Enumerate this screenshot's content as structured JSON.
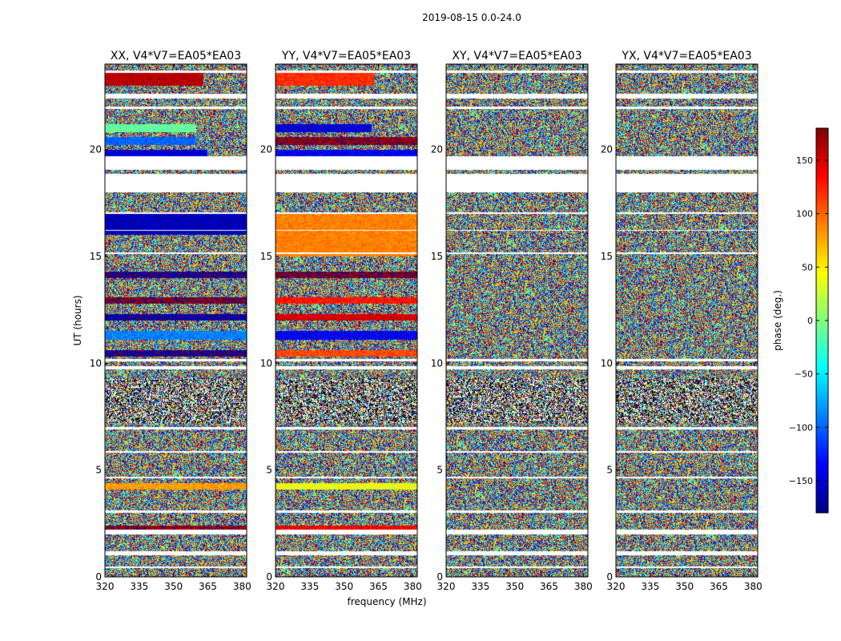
{
  "chart_data": {
    "type": "heatmap",
    "suptitle": "2019-08-15 0.0-24.0",
    "xlabel": "frequency (MHz)",
    "ylabel": "UT (hours)",
    "xlim": [
      320,
      382
    ],
    "ylim": [
      0,
      24
    ],
    "xticks": [
      320,
      335,
      350,
      365,
      380
    ],
    "yticks": [
      0,
      5,
      10,
      15,
      20
    ],
    "panels": [
      {
        "title": "XX, V4*V7=EA05*EA03",
        "coherent_bands": [
          {
            "t0": 23.0,
            "t1": 23.6,
            "phase": 160,
            "f_end": 363
          },
          {
            "t0": 20.8,
            "t1": 21.2,
            "phase": -10,
            "f_end": 360
          },
          {
            "t0": 20.2,
            "t1": 20.6,
            "phase": -100,
            "f_end": 360
          },
          {
            "t0": 19.7,
            "t1": 20.0,
            "phase": -150,
            "f_end": 365
          },
          {
            "t0": 16.0,
            "t1": 17.0,
            "phase": -160,
            "f_end": 382
          },
          {
            "t0": 14.0,
            "t1": 14.3,
            "phase": -170,
            "f_end": 382
          },
          {
            "t0": 12.8,
            "t1": 13.1,
            "phase": 175,
            "f_end": 382
          },
          {
            "t0": 12.0,
            "t1": 12.3,
            "phase": -165,
            "f_end": 382
          },
          {
            "t0": 11.1,
            "t1": 11.5,
            "phase": -90,
            "f_end": 382
          },
          {
            "t0": 10.3,
            "t1": 10.6,
            "phase": -170,
            "f_end": 382
          },
          {
            "t0": 4.1,
            "t1": 4.4,
            "phase": 80,
            "f_end": 382
          },
          {
            "t0": 2.2,
            "t1": 2.4,
            "phase": 170,
            "f_end": 382
          }
        ]
      },
      {
        "title": "YY, V4*V7=EA05*EA03",
        "coherent_bands": [
          {
            "t0": 23.0,
            "t1": 23.6,
            "phase": 120,
            "f_end": 363
          },
          {
            "t0": 20.8,
            "t1": 21.2,
            "phase": -150,
            "f_end": 362
          },
          {
            "t0": 20.2,
            "t1": 20.6,
            "phase": 170,
            "f_end": 382
          },
          {
            "t0": 19.7,
            "t1": 20.0,
            "phase": -140,
            "f_end": 382
          },
          {
            "t0": 15.0,
            "t1": 17.0,
            "phase": 90,
            "f_end": 382
          },
          {
            "t0": 14.0,
            "t1": 14.3,
            "phase": 175,
            "f_end": 382
          },
          {
            "t0": 12.8,
            "t1": 13.1,
            "phase": 130,
            "f_end": 382
          },
          {
            "t0": 12.0,
            "t1": 12.3,
            "phase": 150,
            "f_end": 382
          },
          {
            "t0": 11.1,
            "t1": 11.5,
            "phase": -140,
            "f_end": 382
          },
          {
            "t0": 10.3,
            "t1": 10.6,
            "phase": 110,
            "f_end": 382
          },
          {
            "t0": 4.1,
            "t1": 4.4,
            "phase": 40,
            "f_end": 382
          },
          {
            "t0": 2.2,
            "t1": 2.4,
            "phase": 140,
            "f_end": 382
          }
        ]
      },
      {
        "title": "XY, V4*V7=EA05*EA03",
        "coherent_bands": []
      },
      {
        "title": "YX, V4*V7=EA05*EA03",
        "coherent_bands": []
      }
    ],
    "flagged_ranges": [
      [
        23.6,
        23.7
      ],
      [
        22.4,
        22.6
      ],
      [
        21.9,
        22.0
      ],
      [
        19.05,
        19.7
      ],
      [
        18.0,
        18.85
      ],
      [
        17.0,
        17.05
      ],
      [
        16.2,
        16.25
      ],
      [
        15.1,
        15.2
      ],
      [
        10.1,
        10.2
      ],
      [
        9.7,
        9.85
      ],
      [
        6.9,
        7.0
      ],
      [
        5.8,
        5.9
      ],
      [
        4.6,
        4.7
      ],
      [
        3.0,
        3.1
      ],
      [
        2.0,
        2.2
      ],
      [
        1.0,
        1.2
      ],
      [
        0.4,
        0.5
      ]
    ],
    "noisy_range": [
      7.2,
      9.3
    ],
    "colorbar": {
      "label": "phase (deg.)",
      "range": [
        -180,
        180
      ],
      "ticks": [
        150,
        100,
        50,
        0,
        -50,
        -100,
        -150
      ],
      "tick_labels": [
        "150",
        "100",
        "50",
        "0",
        "−50",
        "−100",
        "−150"
      ],
      "colormap": "jet"
    }
  }
}
